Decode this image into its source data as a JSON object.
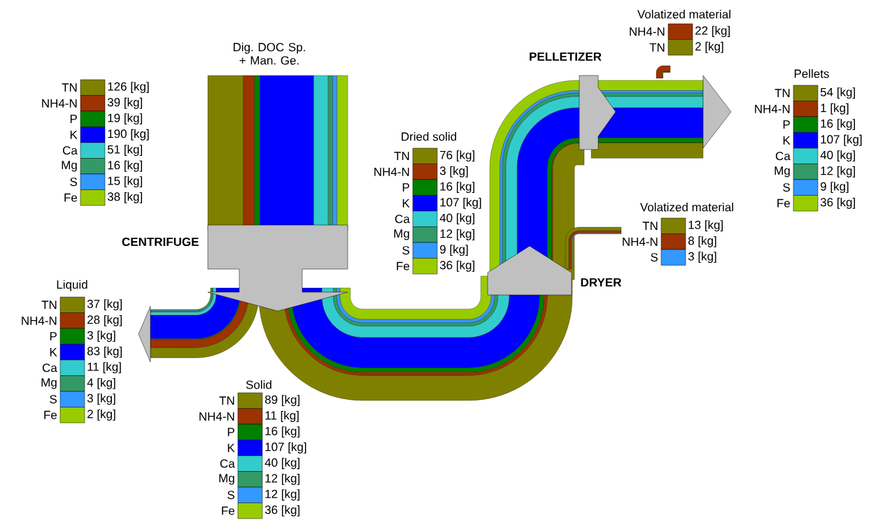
{
  "chart_data": {
    "type": "other",
    "categories": [
      "TN",
      "NH4-N",
      "P",
      "K",
      "Ca",
      "Mg",
      "S",
      "Fe"
    ],
    "colors": [
      "#808000",
      "#9c3300",
      "#008000",
      "#0000ff",
      "#33cccc",
      "#339966",
      "#3399ff",
      "#99cc00"
    ],
    "series": [
      {
        "name": "Dig. DOC Sp. + Man. Ge.",
        "values": [
          126,
          39,
          19,
          190,
          51,
          16,
          15,
          38
        ],
        "value_labels": [
          "126 [kg]",
          "39 [kg]",
          "19 [kg]",
          "190 [kg]",
          "51 [kg]",
          "16 [kg]",
          "15 [kg]",
          "38 [kg]"
        ]
      },
      {
        "name": "Liquid",
        "values": [
          37,
          28,
          3,
          83,
          11,
          4,
          3,
          2
        ],
        "value_labels": [
          "37 [kg]",
          "28 [kg]",
          "3 [kg]",
          "83 [kg]",
          "11 [kg]",
          "4 [kg]",
          "3 [kg]",
          "2 [kg]"
        ]
      },
      {
        "name": "Solid",
        "values": [
          89,
          11,
          16,
          107,
          40,
          12,
          12,
          36
        ],
        "value_labels": [
          "89 [kg]",
          "11 [kg]",
          "16 [kg]",
          "107 [kg]",
          "40 [kg]",
          "12 [kg]",
          "12 [kg]",
          "36 [kg]"
        ]
      },
      {
        "name": "Dried solid",
        "values": [
          76,
          3,
          16,
          107,
          40,
          12,
          9,
          36
        ],
        "value_labels": [
          "76 [kg]",
          "3 [kg]",
          "16 [kg]",
          "107 [kg]",
          "40 [kg]",
          "12 [kg]",
          "9 [kg]",
          "36 [kg]"
        ]
      },
      {
        "name": "Volatized material",
        "values": [
          13,
          8,
          null,
          null,
          null,
          null,
          3,
          null
        ],
        "value_labels": [
          "13 [kg]",
          "8 [kg]",
          null,
          null,
          null,
          null,
          "3 [kg]",
          null
        ]
      },
      {
        "name": "Pellets",
        "values": [
          54,
          1,
          16,
          107,
          40,
          12,
          9,
          36
        ],
        "value_labels": [
          "54 [kg]",
          "1 [kg]",
          "16 [kg]",
          "107 [kg]",
          "40 [kg]",
          "12 [kg]",
          "9 [kg]",
          "36 [kg]"
        ]
      },
      {
        "name": "Volatized material",
        "values": [
          2,
          22,
          null,
          null,
          null,
          null,
          null,
          null
        ],
        "value_labels": [
          "2 [kg]",
          "22 [kg]",
          null,
          null,
          null,
          null,
          null,
          null
        ]
      }
    ],
    "annotations": [
      "CENTRIFUGE",
      "DRYER",
      "PELLETIZER"
    ]
  }
}
